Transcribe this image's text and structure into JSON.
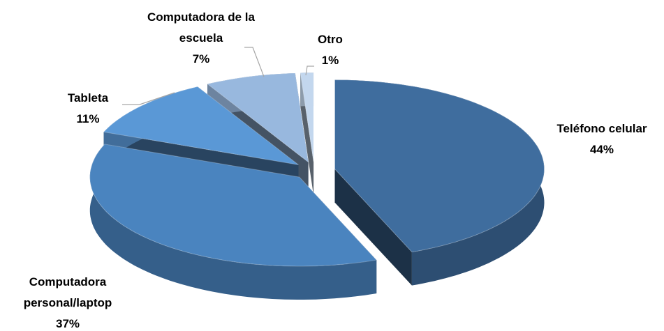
{
  "chart_data": {
    "type": "pie3d",
    "categories": [
      "Teléfono celular",
      "Computadora personal/laptop",
      "Tableta",
      "Computadora de la escuela",
      "Otro"
    ],
    "values": [
      44,
      37,
      11,
      7,
      1
    ],
    "value_labels": [
      "44%",
      "37%",
      "11%",
      "7%",
      "1%"
    ],
    "colors": [
      "#3f6d9e",
      "#4a84bf",
      "#5a98d6",
      "#98b8de",
      "#c3d7ee"
    ]
  }
}
